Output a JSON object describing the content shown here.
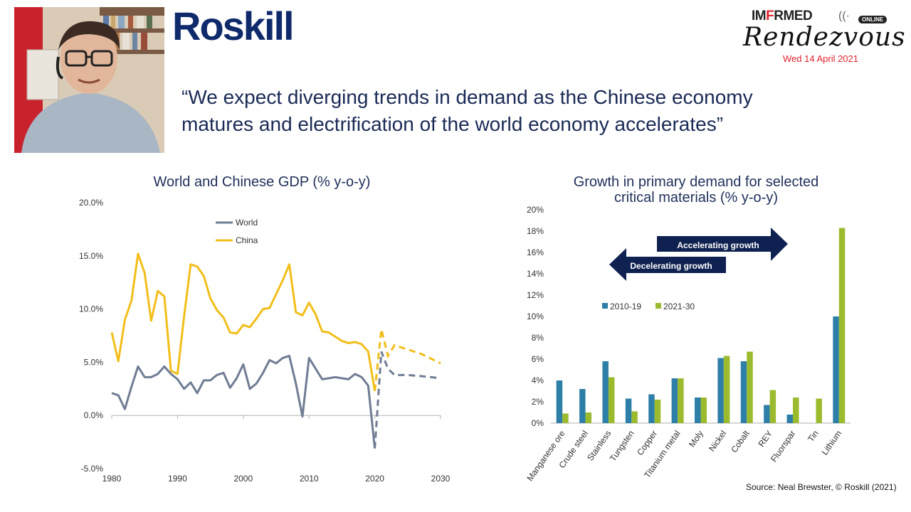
{
  "brand": "Roskill",
  "event": {
    "line1_left": "IM",
    "line1_red": "F",
    "line1_right": "RMED",
    "online": "ONLINE",
    "line2": "Rendezvous",
    "date": "Wed 14 April 2021"
  },
  "quote": "“We expect diverging trends in demand as the Chinese economy matures and electrification of the world economy accelerates”",
  "source": "Source: Neal Brewster, © Roskill (2021)",
  "colors": {
    "world": "#6f7c93",
    "china": "#f2be1a",
    "bar_2010": "#2e7fa8",
    "bar_2021": "#9cba2e",
    "arrow": "#0f2150"
  },
  "chart_data": [
    {
      "type": "line",
      "title": "World and Chinese GDP (% y-o-y)",
      "xlim": [
        1980,
        2030
      ],
      "ylim": [
        -5,
        20
      ],
      "xticks": [
        "1980",
        "1990",
        "2000",
        "2010",
        "2020",
        "2030"
      ],
      "yticks": [
        "-5.0%",
        "0.0%",
        "5.0%",
        "10.0%",
        "15.0%",
        "20.0%"
      ],
      "legend": [
        "World",
        "China"
      ],
      "series": [
        {
          "name": "World",
          "actual": {
            "x": [
              1980,
              1981,
              1982,
              1983,
              1984,
              1985,
              1986,
              1987,
              1988,
              1989,
              1990,
              1991,
              1992,
              1993,
              1994,
              1995,
              1996,
              1997,
              1998,
              1999,
              2000,
              2001,
              2002,
              2003,
              2004,
              2005,
              2006,
              2007,
              2008,
              2009,
              2010,
              2011,
              2012,
              2013,
              2014,
              2015,
              2016,
              2017,
              2018,
              2019,
              2020
            ],
            "y": [
              2.1,
              1.9,
              0.6,
              2.7,
              4.6,
              3.6,
              3.6,
              3.9,
              4.6,
              3.9,
              3.4,
              2.5,
              3.1,
              2.1,
              3.3,
              3.3,
              3.8,
              4.0,
              2.6,
              3.5,
              4.8,
              2.5,
              3.0,
              4.0,
              5.2,
              4.9,
              5.4,
              5.6,
              3.0,
              -0.1,
              5.4,
              4.4,
              3.4,
              3.5,
              3.6,
              3.5,
              3.4,
              3.9,
              3.6,
              2.8,
              -3.1
            ]
          },
          "forecast": {
            "x": [
              2020,
              2021,
              2022,
              2023,
              2025,
              2027,
              2030
            ],
            "y": [
              -3.1,
              6.0,
              4.4,
              3.8,
              3.8,
              3.7,
              3.5
            ]
          }
        },
        {
          "name": "China",
          "actual": {
            "x": [
              1980,
              1981,
              1982,
              1983,
              1984,
              1985,
              1986,
              1987,
              1988,
              1989,
              1990,
              1991,
              1992,
              1993,
              1994,
              1995,
              1996,
              1997,
              1998,
              1999,
              2000,
              2001,
              2002,
              2003,
              2004,
              2005,
              2006,
              2007,
              2008,
              2009,
              2010,
              2011,
              2012,
              2013,
              2014,
              2015,
              2016,
              2017,
              2018,
              2019,
              2020
            ],
            "y": [
              7.8,
              5.1,
              9.0,
              10.8,
              15.2,
              13.4,
              8.9,
              11.7,
              11.2,
              4.2,
              3.9,
              9.3,
              14.2,
              14.0,
              13.1,
              11.0,
              9.9,
              9.2,
              7.8,
              7.7,
              8.5,
              8.3,
              9.1,
              10.0,
              10.1,
              11.4,
              12.7,
              14.2,
              9.7,
              9.4,
              10.6,
              9.5,
              7.9,
              7.8,
              7.4,
              7.0,
              6.8,
              6.9,
              6.7,
              6.0,
              2.3
            ]
          },
          "forecast": {
            "x": [
              2020,
              2021,
              2022,
              2023,
              2025,
              2027,
              2030
            ],
            "y": [
              2.3,
              8.1,
              5.6,
              6.6,
              6.2,
              5.8,
              4.9
            ]
          }
        }
      ]
    },
    {
      "type": "bar",
      "title": "Growth in primary demand for selected critical materials (% y-o-y)",
      "title_line1": "Growth in primary demand for selected",
      "title_line2": "critical materials (% y-o-y)",
      "ylim": [
        0,
        20
      ],
      "yticks": [
        "0%",
        "2%",
        "4%",
        "6%",
        "8%",
        "10%",
        "12%",
        "14%",
        "16%",
        "18%",
        "20%"
      ],
      "categories": [
        "Manganese ore",
        "Crude steel",
        "Stainless",
        "Tungsten",
        "Copper",
        "Titanium metal",
        "Moly",
        "Nickel",
        "Cobalt",
        "REY",
        "Fluorspar",
        "Tin",
        "Lithium"
      ],
      "series": [
        {
          "name": "2010-19",
          "values": [
            4.0,
            3.2,
            5.8,
            2.3,
            2.7,
            4.2,
            2.4,
            6.1,
            5.8,
            1.7,
            0.8,
            0,
            10.0
          ]
        },
        {
          "name": "2021-30",
          "values": [
            0.9,
            1.0,
            4.3,
            1.1,
            2.2,
            4.2,
            2.4,
            6.3,
            6.7,
            3.1,
            2.4,
            2.3,
            18.3
          ]
        }
      ],
      "annotations": {
        "accelerating": "Accelerating growth",
        "decelerating": "Decelerating growth"
      }
    }
  ]
}
